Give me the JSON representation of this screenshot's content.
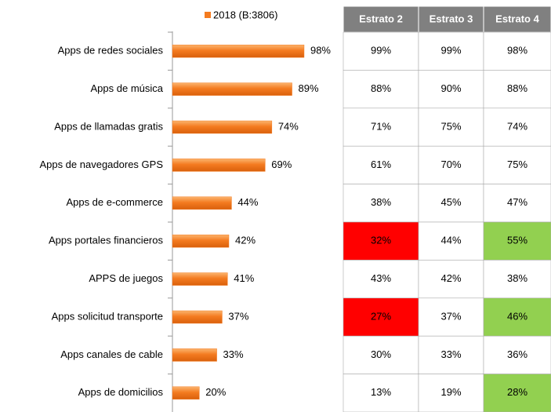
{
  "chart_data": {
    "type": "bar",
    "orientation": "horizontal",
    "series": [
      {
        "name": "2018 (B:3806)",
        "color": "#f47b20",
        "values": [
          98,
          89,
          74,
          69,
          44,
          42,
          41,
          37,
          33,
          20
        ],
        "value_labels": [
          "98%",
          "89%",
          "74%",
          "69%",
          "44%",
          "42%",
          "41%",
          "37%",
          "33%",
          "20%"
        ]
      }
    ],
    "categories": [
      "Apps de redes sociales",
      "Apps de música",
      "Apps de llamadas gratis",
      "Apps de navegadores GPS",
      "Apps de e-commerce",
      "Apps portales financieros",
      "APPS de juegos",
      "Apps solicitud transporte",
      "Apps canales de cable",
      "Apps de domicilios"
    ]
  },
  "table": {
    "columns": [
      "Estrato 2",
      "Estrato 3",
      "Estrato 4"
    ],
    "rows": [
      [
        "99%",
        "99%",
        "98%"
      ],
      [
        "88%",
        "90%",
        "88%"
      ],
      [
        "71%",
        "75%",
        "74%"
      ],
      [
        "61%",
        "70%",
        "75%"
      ],
      [
        "38%",
        "45%",
        "47%"
      ],
      [
        {
          "text": "32%",
          "fill": "#ff0000"
        },
        "44%",
        {
          "text": "55%",
          "fill": "#92d050"
        }
      ],
      [
        "43%",
        "42%",
        "38%"
      ],
      [
        {
          "text": "27%",
          "fill": "#ff0000"
        },
        "37%",
        {
          "text": "46%",
          "fill": "#92d050"
        }
      ],
      [
        "30%",
        "33%",
        "36%"
      ],
      [
        "13%",
        "19%",
        {
          "text": "28%",
          "fill": "#92d050"
        }
      ]
    ]
  }
}
